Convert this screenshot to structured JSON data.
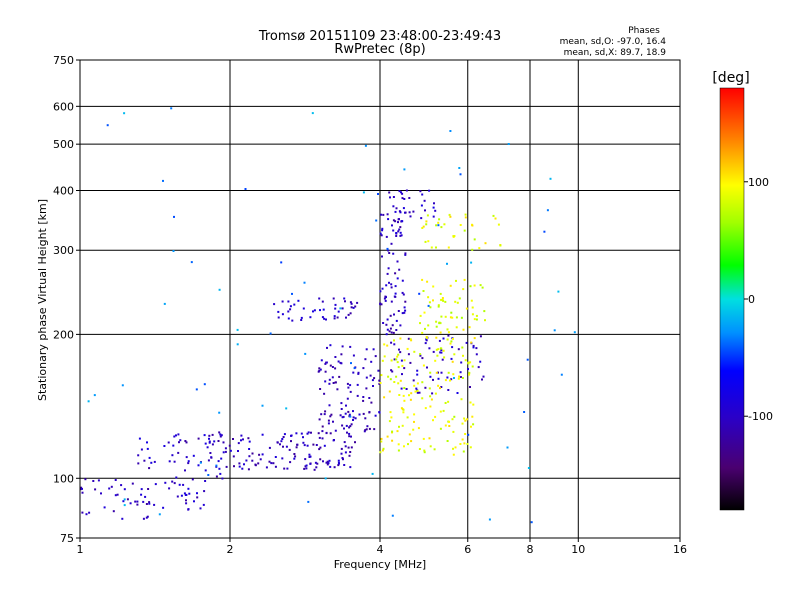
{
  "chart_data": {
    "type": "scatter",
    "title": "Tromsø 20151109 23:48:00-23:49:43",
    "subtitle": "RwPretec (8p)",
    "xlabel": "Frequency [MHz]",
    "ylabel": "Stationary phase Virtual Height [km]",
    "x_scale": "log",
    "y_scale": "log",
    "xlim": [
      1,
      16
    ],
    "ylim": [
      75,
      750
    ],
    "x_ticks": [
      1,
      2,
      4,
      6,
      8,
      10,
      16
    ],
    "y_ticks": [
      75,
      100,
      200,
      300,
      400,
      500,
      600,
      750
    ],
    "grid": true,
    "phase_info": {
      "label": "Phases",
      "line_o": "mean, sd,O: -97.0, 16.4",
      "line_x": "mean, sd,X: 89.7, 18.9"
    },
    "colorbar": {
      "label": "[deg]",
      "min": -180,
      "max": 180,
      "ticks": [
        100,
        0,
        -100
      ],
      "colormap": "rainbow"
    },
    "traces": [
      {
        "x_range": [
          1.0,
          1.4
        ],
        "y_range": [
          82,
          100
        ],
        "phase_deg": -105,
        "points": 40
      },
      {
        "x_range": [
          1.3,
          2.0
        ],
        "y_range": [
          98,
          125
        ],
        "phase_deg": -100,
        "points": 55
      },
      {
        "x_range": [
          1.4,
          1.8
        ],
        "y_range": [
          86,
          98
        ],
        "phase_deg": -100,
        "points": 25
      },
      {
        "x_range": [
          1.8,
          3.6
        ],
        "y_range": [
          104,
          125
        ],
        "phase_deg": -105,
        "points": 140
      },
      {
        "x_range": [
          2.4,
          3.6
        ],
        "y_range": [
          213,
          238
        ],
        "phase_deg": -100,
        "points": 45
      },
      {
        "x_range": [
          3.0,
          4.0
        ],
        "y_range": [
          125,
          190
        ],
        "phase_deg": -110,
        "points": 110
      },
      {
        "x_range": [
          4.0,
          4.5
        ],
        "y_range": [
          200,
          400
        ],
        "phase_deg": -105,
        "points": 90
      },
      {
        "x_range": [
          4.2,
          6.5
        ],
        "y_range": [
          150,
          200
        ],
        "phase_deg": -100,
        "points": 70
      },
      {
        "x_range": [
          4.0,
          6.2
        ],
        "y_range": [
          112,
          200
        ],
        "phase_deg": 90,
        "points": 160
      },
      {
        "x_range": [
          4.8,
          6.5
        ],
        "y_range": [
          200,
          260
        ],
        "phase_deg": 85,
        "points": 60
      },
      {
        "x_range": [
          4.8,
          7.0
        ],
        "y_range": [
          300,
          360
        ],
        "phase_deg": 90,
        "points": 35
      },
      {
        "x_range": [
          4.2,
          5.2
        ],
        "y_range": [
          340,
          400
        ],
        "phase_deg": -95,
        "points": 25
      },
      {
        "x_range": [
          1.0,
          10.0
        ],
        "y_range": [
          80,
          600
        ],
        "phase_deg": -30,
        "points": 70
      }
    ]
  }
}
